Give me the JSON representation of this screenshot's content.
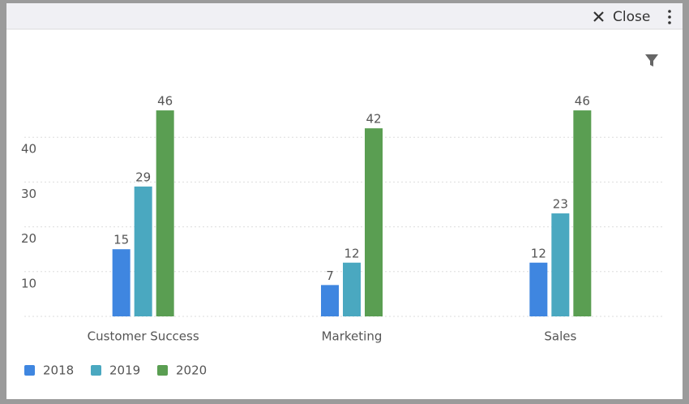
{
  "header": {
    "close": "Close"
  },
  "chart_data": {
    "type": "bar",
    "categories": [
      "Customer Success",
      "Marketing",
      "Sales"
    ],
    "series": [
      {
        "name": "2018",
        "color": "#3f86e0",
        "values": [
          15,
          7,
          12
        ]
      },
      {
        "name": "2019",
        "color": "#4aa8c0",
        "values": [
          29,
          12,
          23
        ]
      },
      {
        "name": "2020",
        "color": "#5a9e52",
        "values": [
          46,
          42,
          46
        ]
      }
    ],
    "ylim": [
      0,
      50
    ],
    "yticks": [
      10,
      20,
      30,
      40
    ],
    "grid": true,
    "legend": "bottom-left"
  }
}
